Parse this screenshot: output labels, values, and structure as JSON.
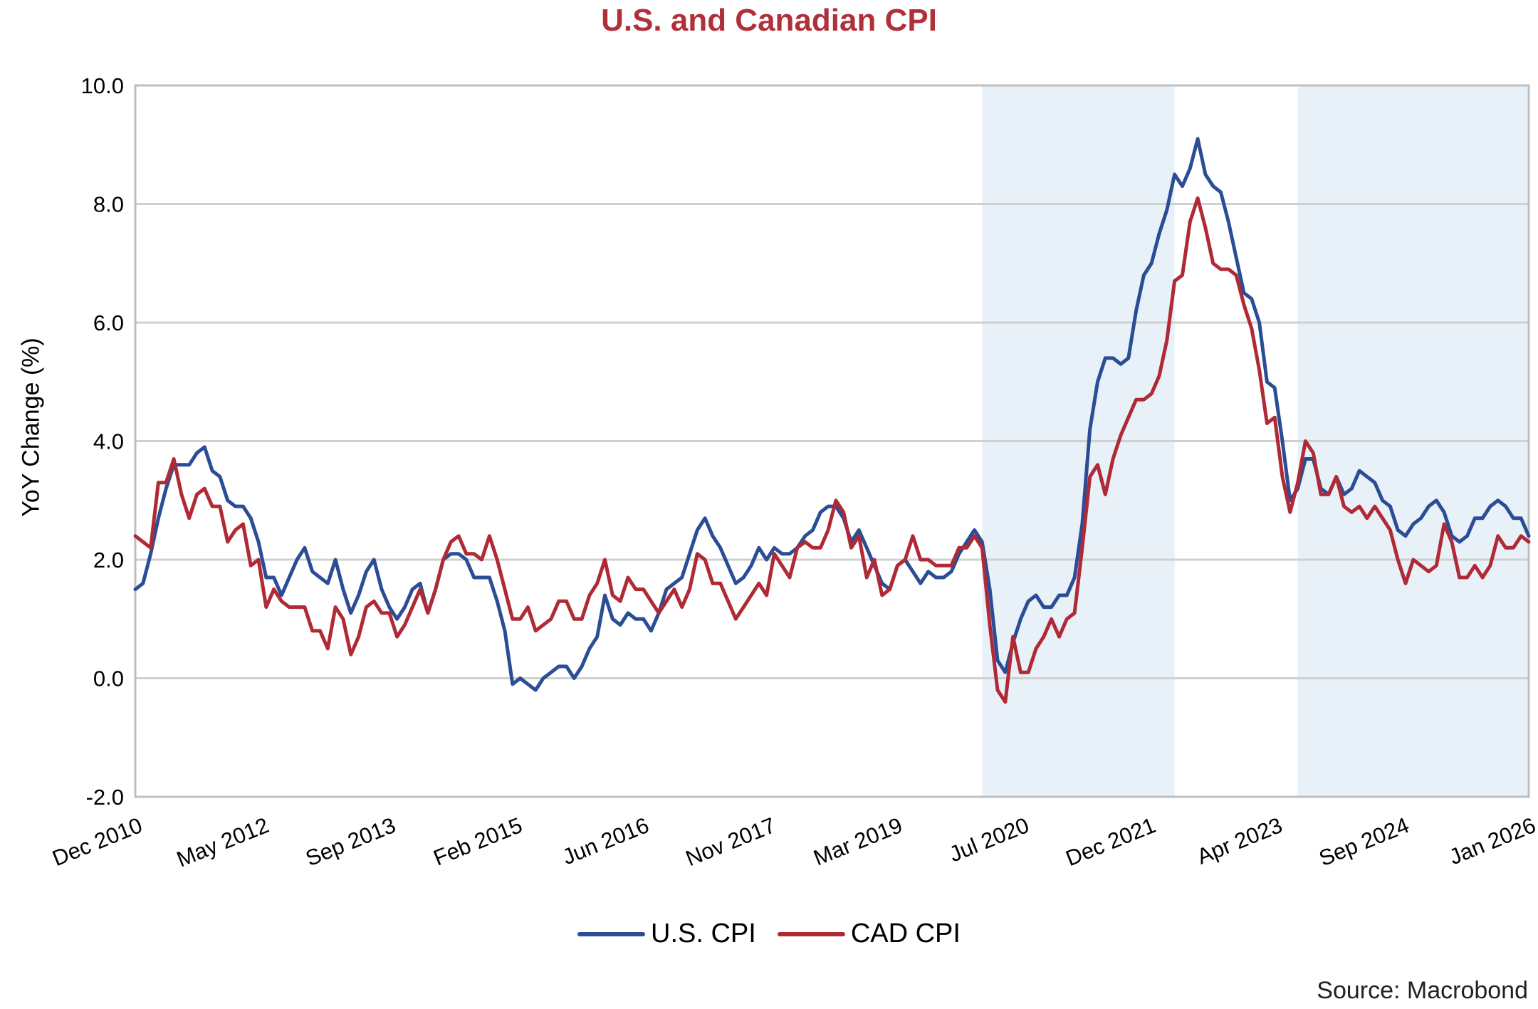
{
  "chart_data": {
    "type": "line",
    "title": "U.S. and Canadian CPI",
    "xlabel": "",
    "ylabel": "YoY Change (%)",
    "ylim": [
      -2.0,
      10.0
    ],
    "yticks": [
      "-2.0",
      "0.0",
      "2.0",
      "4.0",
      "6.0",
      "8.0",
      "10.0"
    ],
    "x_start": "2010-12",
    "x_end": "2026-01",
    "xtick_labels": [
      "Dec 2010",
      "May 2012",
      "Sep 2013",
      "Feb 2015",
      "Jun 2016",
      "Nov 2017",
      "Mar 2019",
      "Jul 2020",
      "Dec 2021",
      "Apr 2023",
      "Sep 2024",
      "Jan 2026"
    ],
    "grid": true,
    "legend_position": "bottom",
    "shaded_periods": [
      [
        "2020-02",
        "2022-03"
      ],
      [
        "2023-07",
        "2026-01"
      ]
    ],
    "shade_color": "#e8f0f8",
    "series": [
      {
        "name": "U.S. CPI",
        "color": "#2a4d96",
        "values": [
          1.5,
          1.6,
          2.1,
          2.7,
          3.2,
          3.6,
          3.6,
          3.6,
          3.8,
          3.9,
          3.5,
          3.4,
          3.0,
          2.9,
          2.9,
          2.7,
          2.3,
          1.7,
          1.7,
          1.4,
          1.7,
          2.0,
          2.2,
          1.8,
          1.7,
          1.6,
          2.0,
          1.5,
          1.1,
          1.4,
          1.8,
          2.0,
          1.5,
          1.2,
          1.0,
          1.2,
          1.5,
          1.6,
          1.1,
          1.5,
          2.0,
          2.1,
          2.1,
          2.0,
          1.7,
          1.7,
          1.7,
          1.3,
          0.8,
          -0.1,
          0.0,
          -0.1,
          -0.2,
          0.0,
          0.1,
          0.2,
          0.2,
          0.0,
          0.2,
          0.5,
          0.7,
          1.4,
          1.0,
          0.9,
          1.1,
          1.0,
          1.0,
          0.8,
          1.1,
          1.5,
          1.6,
          1.7,
          2.1,
          2.5,
          2.7,
          2.4,
          2.2,
          1.9,
          1.6,
          1.7,
          1.9,
          2.2,
          2.0,
          2.2,
          2.1,
          2.1,
          2.2,
          2.4,
          2.5,
          2.8,
          2.9,
          2.9,
          2.7,
          2.3,
          2.5,
          2.2,
          1.9,
          1.6,
          1.5,
          1.9,
          2.0,
          1.8,
          1.6,
          1.8,
          1.7,
          1.7,
          1.8,
          2.1,
          2.3,
          2.5,
          2.3,
          1.5,
          0.3,
          0.1,
          0.6,
          1.0,
          1.3,
          1.4,
          1.2,
          1.2,
          1.4,
          1.4,
          1.7,
          2.6,
          4.2,
          5.0,
          5.4,
          5.4,
          5.3,
          5.4,
          6.2,
          6.8,
          7.0,
          7.5,
          7.9,
          8.5,
          8.3,
          8.6,
          9.1,
          8.5,
          8.3,
          8.2,
          7.7,
          7.1,
          6.5,
          6.4,
          6.0,
          5.0,
          4.9,
          4.0,
          3.0,
          3.2,
          3.7,
          3.7,
          3.2,
          3.1,
          3.4,
          3.1,
          3.2,
          3.5,
          3.4,
          3.3,
          3.0,
          2.9,
          2.5,
          2.4,
          2.6,
          2.7,
          2.9,
          3.0,
          2.8,
          2.4,
          2.3,
          2.4,
          2.7,
          2.7,
          2.9,
          3.0,
          2.9,
          2.7,
          2.7,
          2.4
        ]
      },
      {
        "name": "CAD CPI",
        "color": "#b02a36",
        "values": [
          2.4,
          2.3,
          2.2,
          3.3,
          3.3,
          3.7,
          3.1,
          2.7,
          3.1,
          3.2,
          2.9,
          2.9,
          2.3,
          2.5,
          2.6,
          1.9,
          2.0,
          1.2,
          1.5,
          1.3,
          1.2,
          1.2,
          1.2,
          0.8,
          0.8,
          0.5,
          1.2,
          1.0,
          0.4,
          0.7,
          1.2,
          1.3,
          1.1,
          1.1,
          0.7,
          0.9,
          1.2,
          1.5,
          1.1,
          1.5,
          2.0,
          2.3,
          2.4,
          2.1,
          2.1,
          2.0,
          2.4,
          2.0,
          1.5,
          1.0,
          1.0,
          1.2,
          0.8,
          0.9,
          1.0,
          1.3,
          1.3,
          1.0,
          1.0,
          1.4,
          1.6,
          2.0,
          1.4,
          1.3,
          1.7,
          1.5,
          1.5,
          1.3,
          1.1,
          1.3,
          1.5,
          1.2,
          1.5,
          2.1,
          2.0,
          1.6,
          1.6,
          1.3,
          1.0,
          1.2,
          1.4,
          1.6,
          1.4,
          2.1,
          1.9,
          1.7,
          2.2,
          2.3,
          2.2,
          2.2,
          2.5,
          3.0,
          2.8,
          2.2,
          2.4,
          1.7,
          2.0,
          1.4,
          1.5,
          1.9,
          2.0,
          2.4,
          2.0,
          2.0,
          1.9,
          1.9,
          1.9,
          2.2,
          2.2,
          2.4,
          2.2,
          0.9,
          -0.2,
          -0.4,
          0.7,
          0.1,
          0.1,
          0.5,
          0.7,
          1.0,
          0.7,
          1.0,
          1.1,
          2.2,
          3.4,
          3.6,
          3.1,
          3.7,
          4.1,
          4.4,
          4.7,
          4.7,
          4.8,
          5.1,
          5.7,
          6.7,
          6.8,
          7.7,
          8.1,
          7.6,
          7.0,
          6.9,
          6.9,
          6.8,
          6.3,
          5.9,
          5.2,
          4.3,
          4.4,
          3.4,
          2.8,
          3.3,
          4.0,
          3.8,
          3.1,
          3.1,
          3.4,
          2.9,
          2.8,
          2.9,
          2.7,
          2.9,
          2.7,
          2.5,
          2.0,
          1.6,
          2.0,
          1.9,
          1.8,
          1.9,
          2.6,
          2.3,
          1.7,
          1.7,
          1.9,
          1.7,
          1.9,
          2.4,
          2.2,
          2.2,
          2.4,
          2.3
        ]
      }
    ],
    "source": "Source: Macrobond"
  }
}
